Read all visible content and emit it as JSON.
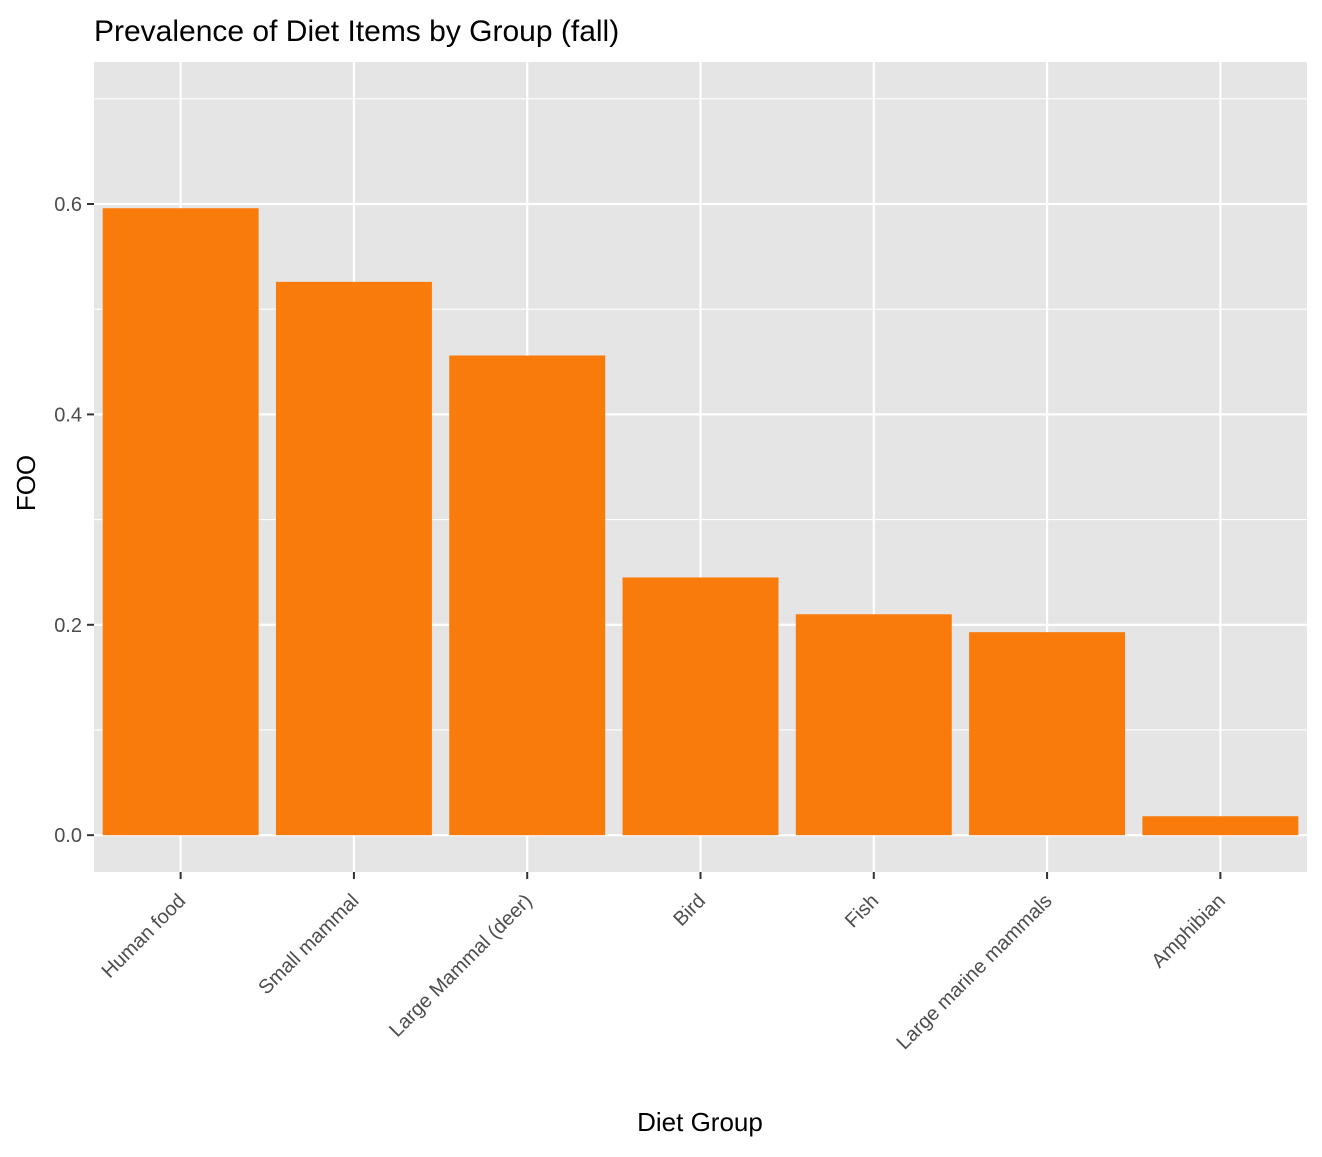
{
  "chart_data": {
    "type": "bar",
    "title": "Prevalence of Diet Items by Group (fall)",
    "xlabel": "Diet Group",
    "ylabel": "FOO",
    "categories": [
      "Human food",
      "Small mammal",
      "Large Mammal (deer)",
      "Bird",
      "Fish",
      "Large marine mammals",
      "Amphibian"
    ],
    "values": [
      0.596,
      0.526,
      0.456,
      0.245,
      0.21,
      0.193,
      0.018
    ],
    "ylim": [
      -0.035,
      0.735
    ],
    "yticks": [
      0.0,
      0.2,
      0.4,
      0.6
    ],
    "ytick_labels": [
      "0.0",
      "0.2",
      "0.4",
      "0.6"
    ],
    "grid": true,
    "legend": "none",
    "bar_color": "#F97B0B",
    "panel_background": "#E5E5E5",
    "grid_color": "#FFFFFF",
    "tick_label_color": "#4D4D4D"
  }
}
